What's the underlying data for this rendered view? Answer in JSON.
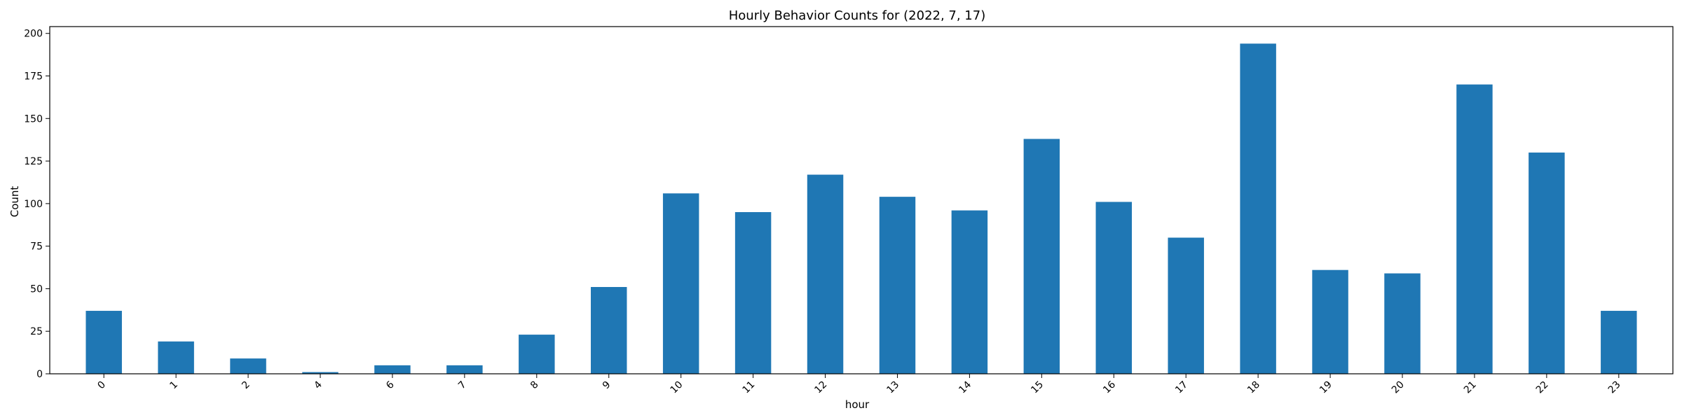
{
  "chart_data": {
    "type": "bar",
    "title": "Hourly Behavior Counts for (2022, 7, 17)",
    "xlabel": "hour",
    "ylabel": "Count",
    "categories": [
      "0",
      "1",
      "2",
      "4",
      "6",
      "7",
      "8",
      "9",
      "10",
      "11",
      "12",
      "13",
      "14",
      "15",
      "16",
      "17",
      "18",
      "19",
      "20",
      "21",
      "22",
      "23"
    ],
    "values": [
      37,
      19,
      9,
      1,
      5,
      5,
      23,
      51,
      106,
      95,
      117,
      104,
      96,
      138,
      101,
      80,
      194,
      61,
      59,
      170,
      130,
      37
    ],
    "ylim": [
      0,
      204
    ],
    "yticks": [
      0,
      25,
      50,
      75,
      100,
      125,
      150,
      175,
      200
    ],
    "bar_color": "#1f77b4",
    "grid": false,
    "legend": "none",
    "xtick_rotation": 45
  }
}
